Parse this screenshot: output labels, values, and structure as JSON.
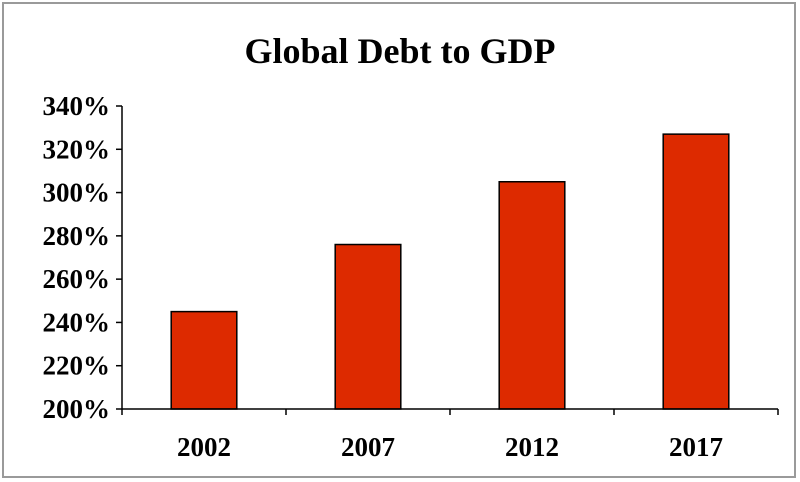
{
  "chart_data": {
    "type": "bar",
    "title": "Global Debt to GDP",
    "xlabel": "",
    "ylabel": "",
    "categories": [
      "2002",
      "2007",
      "2012",
      "2017"
    ],
    "values": [
      245,
      276,
      305,
      327
    ],
    "ylim": [
      200,
      340
    ],
    "yticks": [
      200,
      220,
      240,
      260,
      280,
      300,
      320,
      340
    ],
    "ytick_labels": [
      "200%",
      "220%",
      "240%",
      "260%",
      "280%",
      "300%",
      "320%",
      "340%"
    ],
    "grid": false,
    "legend": "none",
    "bar_color": "#dd2a00",
    "bar_edge_color": "#000000"
  }
}
